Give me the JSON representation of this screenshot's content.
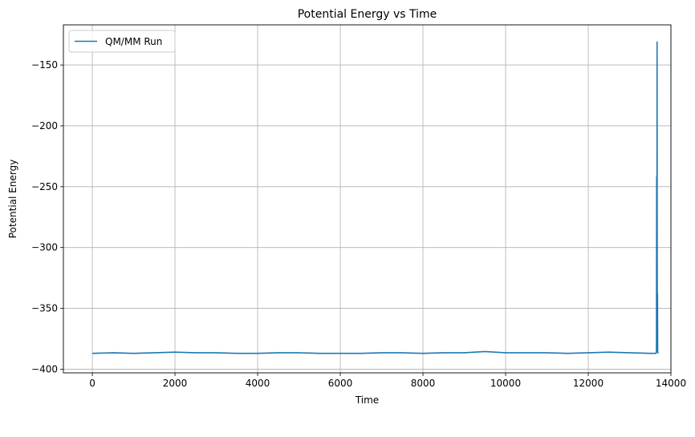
{
  "chart_data": {
    "type": "line",
    "title": "Potential Energy vs Time",
    "xlabel": "Time",
    "ylabel": "Potential Energy",
    "xlim": [
      -700,
      14000
    ],
    "ylim": [
      -403,
      -117
    ],
    "grid": true,
    "legend_position": "top-left",
    "x_ticks": [
      0,
      2000,
      4000,
      6000,
      8000,
      10000,
      12000,
      14000
    ],
    "x_tick_labels": [
      "0",
      "2000",
      "4000",
      "6000",
      "8000",
      "10000",
      "12000",
      "14000"
    ],
    "y_ticks": [
      -400,
      -350,
      -300,
      -250,
      -200,
      -150
    ],
    "y_tick_labels": [
      "−400",
      "−350",
      "−300",
      "−250",
      "−200",
      "−150"
    ],
    "series": [
      {
        "name": "QM/MM Run",
        "color": "#1f77b4",
        "x": [
          0,
          500,
          1000,
          1500,
          2000,
          2500,
          3000,
          3500,
          4000,
          4500,
          5000,
          5500,
          6000,
          6500,
          7000,
          7500,
          8000,
          8500,
          9000,
          9500,
          10000,
          10500,
          11000,
          11500,
          12000,
          12500,
          13000,
          13500,
          13640,
          13650,
          13655,
          13660,
          13665,
          13670,
          13675,
          13680,
          13690
        ],
        "y": [
          -387,
          -386.5,
          -387,
          -386.5,
          -386,
          -386.5,
          -386.5,
          -387,
          -387,
          -386.5,
          -386.5,
          -387,
          -387,
          -387,
          -386.5,
          -386.5,
          -387,
          -386.5,
          -386.5,
          -385.5,
          -386.5,
          -386.5,
          -386.5,
          -387,
          -386.5,
          -386,
          -386.5,
          -387,
          -387,
          -385,
          -242,
          -370,
          -131,
          -380,
          -338,
          -386,
          -387
        ]
      }
    ]
  }
}
